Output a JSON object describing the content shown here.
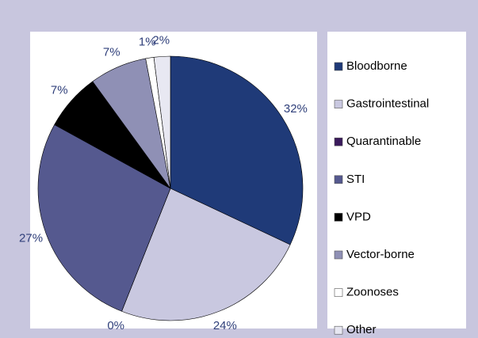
{
  "chart_data": {
    "type": "pie",
    "categories": [
      "Bloodborne",
      "Gastrointestinal",
      "Quarantinable",
      "STI",
      "VPD",
      "Vector-borne",
      "Zoonoses",
      "Other"
    ],
    "values": [
      32,
      24,
      0,
      27,
      7,
      7,
      1,
      2
    ],
    "value_labels": [
      "32%",
      "24%",
      "0%",
      "27%",
      "7%",
      "7%",
      "1%",
      "2%"
    ],
    "colors": [
      "#1f3a78",
      "#c9c8e0",
      "#3a1a5c",
      "#55598f",
      "#000000",
      "#8f90b5",
      "#ffffff",
      "#e8e8f2"
    ]
  }
}
